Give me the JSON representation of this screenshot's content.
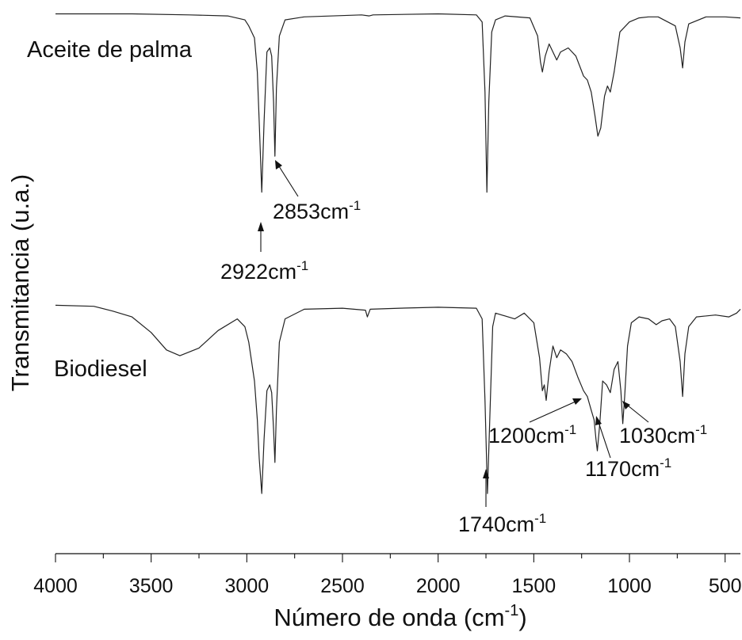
{
  "chart_data": {
    "type": "line",
    "xlabel": "Número de onda (cm",
    "xlabel_sup": "-1",
    "xlabel_close": ")",
    "ylabel": "Transmitancia (u.a.)",
    "x_reversed": true,
    "xlim": [
      4000,
      420
    ],
    "x_ticks": [
      "4000",
      "3500",
      "3000",
      "2500",
      "2000",
      "1500",
      "1000",
      "500"
    ],
    "x_tick_values": [
      4000,
      3500,
      3000,
      2500,
      2000,
      1500,
      1000,
      500
    ],
    "grid": false,
    "legend": "none",
    "series": [
      {
        "name": "Aceite de palma",
        "points": [
          [
            4000,
            0.99
          ],
          [
            3600,
            0.99
          ],
          [
            3300,
            0.985
          ],
          [
            3100,
            0.98
          ],
          [
            3010,
            0.96
          ],
          [
            2990,
            0.93
          ],
          [
            2960,
            0.87
          ],
          [
            2945,
            0.7
          ],
          [
            2935,
            0.45
          ],
          [
            2922,
            0.1
          ],
          [
            2910,
            0.45
          ],
          [
            2895,
            0.8
          ],
          [
            2880,
            0.82
          ],
          [
            2870,
            0.78
          ],
          [
            2860,
            0.55
          ],
          [
            2853,
            0.28
          ],
          [
            2845,
            0.62
          ],
          [
            2830,
            0.88
          ],
          [
            2800,
            0.96
          ],
          [
            2700,
            0.975
          ],
          [
            2400,
            0.985
          ],
          [
            2360,
            0.98
          ],
          [
            2340,
            0.985
          ],
          [
            2000,
            0.99
          ],
          [
            1800,
            0.985
          ],
          [
            1770,
            0.95
          ],
          [
            1755,
            0.6
          ],
          [
            1745,
            0.1
          ],
          [
            1735,
            0.55
          ],
          [
            1720,
            0.9
          ],
          [
            1700,
            0.96
          ],
          [
            1650,
            0.98
          ],
          [
            1520,
            0.97
          ],
          [
            1480,
            0.88
          ],
          [
            1465,
            0.75
          ],
          [
            1455,
            0.7
          ],
          [
            1440,
            0.78
          ],
          [
            1420,
            0.84
          ],
          [
            1400,
            0.8
          ],
          [
            1380,
            0.76
          ],
          [
            1360,
            0.8
          ],
          [
            1320,
            0.82
          ],
          [
            1280,
            0.78
          ],
          [
            1240,
            0.68
          ],
          [
            1220,
            0.66
          ],
          [
            1200,
            0.6
          ],
          [
            1180,
            0.48
          ],
          [
            1165,
            0.38
          ],
          [
            1150,
            0.42
          ],
          [
            1130,
            0.58
          ],
          [
            1115,
            0.63
          ],
          [
            1100,
            0.6
          ],
          [
            1080,
            0.7
          ],
          [
            1050,
            0.9
          ],
          [
            1000,
            0.95
          ],
          [
            950,
            0.97
          ],
          [
            900,
            0.975
          ],
          [
            850,
            0.975
          ],
          [
            760,
            0.93
          ],
          [
            735,
            0.82
          ],
          [
            722,
            0.72
          ],
          [
            710,
            0.85
          ],
          [
            690,
            0.94
          ],
          [
            600,
            0.975
          ],
          [
            500,
            0.975
          ],
          [
            420,
            0.97
          ]
        ]
      },
      {
        "name": "Biodiesel",
        "points": [
          [
            4000,
            0.99
          ],
          [
            3800,
            0.985
          ],
          [
            3700,
            0.96
          ],
          [
            3600,
            0.93
          ],
          [
            3500,
            0.85
          ],
          [
            3420,
            0.76
          ],
          [
            3350,
            0.73
          ],
          [
            3250,
            0.77
          ],
          [
            3150,
            0.86
          ],
          [
            3050,
            0.92
          ],
          [
            3010,
            0.88
          ],
          [
            2990,
            0.8
          ],
          [
            2960,
            0.6
          ],
          [
            2945,
            0.4
          ],
          [
            2935,
            0.2
          ],
          [
            2922,
            0.02
          ],
          [
            2910,
            0.3
          ],
          [
            2895,
            0.55
          ],
          [
            2880,
            0.58
          ],
          [
            2870,
            0.54
          ],
          [
            2860,
            0.35
          ],
          [
            2853,
            0.18
          ],
          [
            2845,
            0.45
          ],
          [
            2830,
            0.8
          ],
          [
            2800,
            0.92
          ],
          [
            2700,
            0.97
          ],
          [
            2500,
            0.975
          ],
          [
            2380,
            0.965
          ],
          [
            2370,
            0.93
          ],
          [
            2355,
            0.97
          ],
          [
            2200,
            0.975
          ],
          [
            2000,
            0.98
          ],
          [
            1800,
            0.975
          ],
          [
            1770,
            0.92
          ],
          [
            1755,
            0.5
          ],
          [
            1742,
            0.02
          ],
          [
            1730,
            0.4
          ],
          [
            1715,
            0.88
          ],
          [
            1700,
            0.95
          ],
          [
            1600,
            0.92
          ],
          [
            1550,
            0.95
          ],
          [
            1500,
            0.9
          ],
          [
            1470,
            0.72
          ],
          [
            1455,
            0.55
          ],
          [
            1445,
            0.58
          ],
          [
            1435,
            0.5
          ],
          [
            1420,
            0.65
          ],
          [
            1400,
            0.78
          ],
          [
            1380,
            0.72
          ],
          [
            1360,
            0.76
          ],
          [
            1330,
            0.74
          ],
          [
            1300,
            0.7
          ],
          [
            1270,
            0.62
          ],
          [
            1240,
            0.55
          ],
          [
            1220,
            0.52
          ],
          [
            1200,
            0.45
          ],
          [
            1185,
            0.4
          ],
          [
            1175,
            0.3
          ],
          [
            1168,
            0.24
          ],
          [
            1155,
            0.38
          ],
          [
            1140,
            0.6
          ],
          [
            1120,
            0.58
          ],
          [
            1100,
            0.54
          ],
          [
            1080,
            0.66
          ],
          [
            1060,
            0.7
          ],
          [
            1045,
            0.55
          ],
          [
            1035,
            0.38
          ],
          [
            1025,
            0.52
          ],
          [
            1010,
            0.78
          ],
          [
            990,
            0.9
          ],
          [
            950,
            0.93
          ],
          [
            900,
            0.92
          ],
          [
            860,
            0.89
          ],
          [
            830,
            0.91
          ],
          [
            790,
            0.92
          ],
          [
            760,
            0.88
          ],
          [
            735,
            0.7
          ],
          [
            722,
            0.52
          ],
          [
            710,
            0.74
          ],
          [
            690,
            0.88
          ],
          [
            650,
            0.93
          ],
          [
            550,
            0.94
          ],
          [
            480,
            0.93
          ],
          [
            440,
            0.95
          ],
          [
            420,
            0.97
          ]
        ]
      }
    ],
    "annotations": {
      "series_labels": [
        "Aceite de palma",
        "Biodiesel"
      ],
      "peak_labels": [
        {
          "value": "2922",
          "unit": "cm",
          "sup": "-1"
        },
        {
          "value": "2853",
          "unit": "cm",
          "sup": "-1"
        },
        {
          "value": "1740",
          "unit": "cm",
          "sup": "-1"
        },
        {
          "value": "1200",
          "unit": "cm",
          "sup": "-1"
        },
        {
          "value": "1170",
          "unit": "cm",
          "sup": "-1"
        },
        {
          "value": "1030",
          "unit": "cm",
          "sup": "-1"
        }
      ]
    }
  }
}
